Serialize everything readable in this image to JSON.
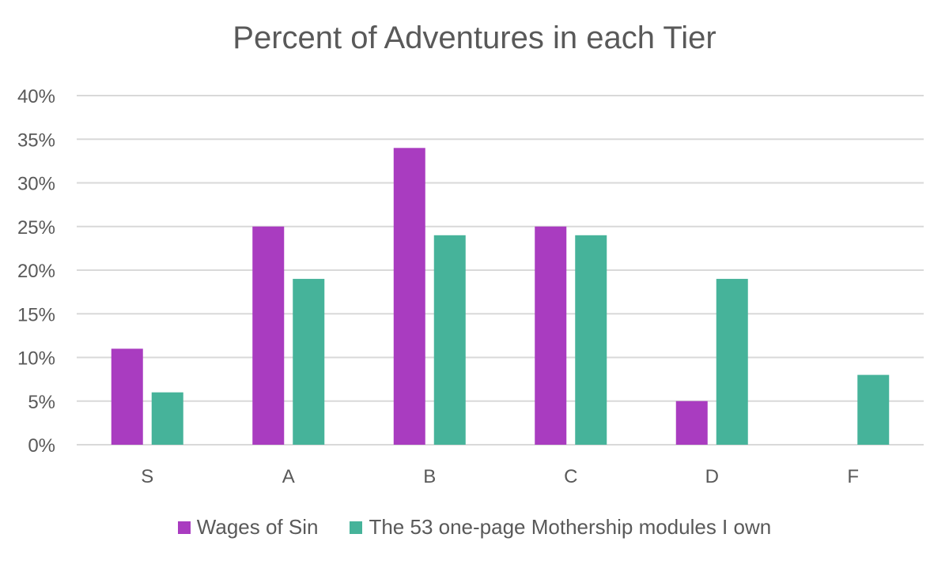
{
  "chart_data": {
    "type": "bar",
    "title": "Percent of Adventures in each Tier",
    "xlabel": "",
    "ylabel": "",
    "categories": [
      "S",
      "A",
      "B",
      "C",
      "D",
      "F"
    ],
    "ylim": [
      0,
      40
    ],
    "yticks": [
      "0%",
      "5%",
      "10%",
      "15%",
      "20%",
      "25%",
      "30%",
      "35%",
      "40%"
    ],
    "ytick_values": [
      0,
      5,
      10,
      15,
      20,
      25,
      30,
      35,
      40
    ],
    "grid": true,
    "legend_position": "bottom",
    "series": [
      {
        "name": "Wages of Sin",
        "color": "#A93CC0",
        "values": [
          11,
          25,
          34,
          25,
          5,
          0
        ]
      },
      {
        "name": "The 53 one-page Mothership modules I own",
        "color": "#46B39A",
        "values": [
          6,
          19,
          24,
          24,
          19,
          8
        ]
      }
    ]
  }
}
